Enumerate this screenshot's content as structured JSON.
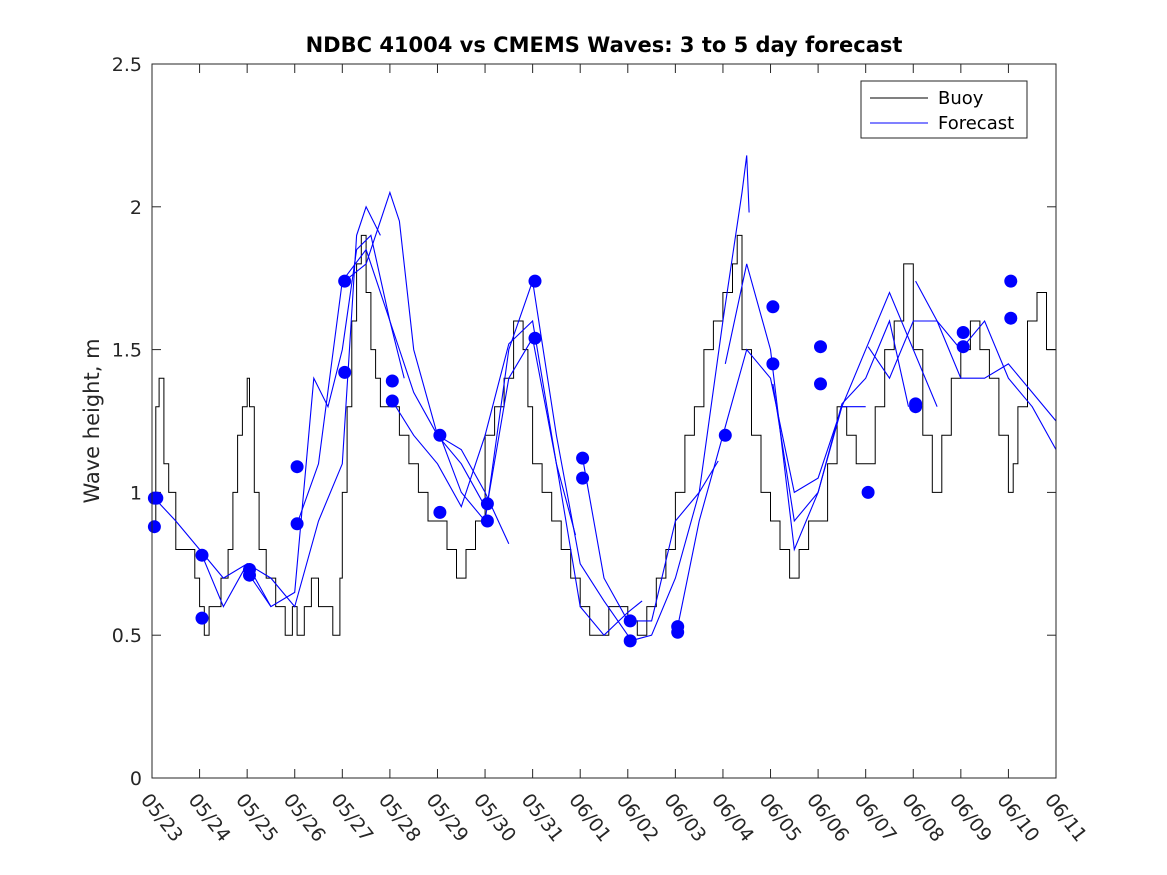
{
  "chart_data": {
    "type": "line",
    "title": "NDBC 41004 vs CMEMS Waves: 3 to 5 day forecast",
    "xlabel": "",
    "ylabel": "Wave height, m",
    "x_tick_labels": [
      "05/23",
      "05/24",
      "05/25",
      "05/26",
      "05/27",
      "05/28",
      "05/29",
      "05/30",
      "05/31",
      "06/01",
      "06/02",
      "06/03",
      "06/04",
      "06/05",
      "06/06",
      "06/07",
      "06/08",
      "06/09",
      "06/10",
      "06/11"
    ],
    "xlim_days": [
      0,
      19
    ],
    "y_tick_labels": [
      "0",
      "0.5",
      "1",
      "1.5",
      "2",
      "2.5"
    ],
    "ylim": [
      0,
      2.5
    ],
    "grid": false,
    "legend_position": "top-right",
    "colors": {
      "buoy": "#000000",
      "forecast": "#0000ff",
      "markers": "#0000ff"
    },
    "legend": [
      {
        "label": "Buoy",
        "color": "#000000"
      },
      {
        "label": "Forecast",
        "color": "#0000ff"
      }
    ],
    "buoy": {
      "name": "Buoy",
      "points": [
        [
          0.0,
          0.9
        ],
        [
          0.08,
          1.3
        ],
        [
          0.15,
          1.4
        ],
        [
          0.25,
          1.1
        ],
        [
          0.35,
          1.0
        ],
        [
          0.5,
          0.8
        ],
        [
          0.7,
          0.8
        ],
        [
          0.9,
          0.7
        ],
        [
          1.0,
          0.6
        ],
        [
          1.1,
          0.5
        ],
        [
          1.2,
          0.6
        ],
        [
          1.3,
          0.6
        ],
        [
          1.45,
          0.7
        ],
        [
          1.6,
          0.8
        ],
        [
          1.7,
          1.0
        ],
        [
          1.8,
          1.2
        ],
        [
          1.9,
          1.3
        ],
        [
          2.0,
          1.4
        ],
        [
          2.05,
          1.3
        ],
        [
          2.15,
          1.0
        ],
        [
          2.25,
          0.8
        ],
        [
          2.4,
          0.7
        ],
        [
          2.5,
          0.7
        ],
        [
          2.6,
          0.6
        ],
        [
          2.8,
          0.5
        ],
        [
          2.95,
          0.6
        ],
        [
          3.05,
          0.5
        ],
        [
          3.2,
          0.6
        ],
        [
          3.35,
          0.7
        ],
        [
          3.5,
          0.6
        ],
        [
          3.6,
          0.6
        ],
        [
          3.8,
          0.5
        ],
        [
          3.95,
          0.7
        ],
        [
          4.0,
          1.0
        ],
        [
          4.1,
          1.3
        ],
        [
          4.2,
          1.6
        ],
        [
          4.3,
          1.8
        ],
        [
          4.4,
          1.9
        ],
        [
          4.5,
          1.7
        ],
        [
          4.6,
          1.5
        ],
        [
          4.7,
          1.4
        ],
        [
          4.8,
          1.3
        ],
        [
          5.0,
          1.3
        ],
        [
          5.2,
          1.2
        ],
        [
          5.4,
          1.1
        ],
        [
          5.6,
          1.0
        ],
        [
          5.8,
          0.9
        ],
        [
          6.0,
          0.9
        ],
        [
          6.2,
          0.8
        ],
        [
          6.4,
          0.7
        ],
        [
          6.6,
          0.8
        ],
        [
          6.8,
          0.9
        ],
        [
          7.0,
          1.2
        ],
        [
          7.2,
          1.3
        ],
        [
          7.4,
          1.4
        ],
        [
          7.6,
          1.6
        ],
        [
          7.8,
          1.5
        ],
        [
          7.9,
          1.3
        ],
        [
          8.0,
          1.1
        ],
        [
          8.2,
          1.0
        ],
        [
          8.4,
          0.9
        ],
        [
          8.6,
          0.8
        ],
        [
          8.8,
          0.7
        ],
        [
          9.0,
          0.6
        ],
        [
          9.2,
          0.5
        ],
        [
          9.4,
          0.5
        ],
        [
          9.6,
          0.6
        ],
        [
          9.8,
          0.6
        ],
        [
          10.0,
          0.55
        ],
        [
          10.2,
          0.5
        ],
        [
          10.4,
          0.6
        ],
        [
          10.6,
          0.7
        ],
        [
          10.8,
          0.8
        ],
        [
          11.0,
          1.0
        ],
        [
          11.2,
          1.2
        ],
        [
          11.4,
          1.3
        ],
        [
          11.6,
          1.5
        ],
        [
          11.8,
          1.6
        ],
        [
          12.0,
          1.7
        ],
        [
          12.2,
          1.8
        ],
        [
          12.3,
          1.9
        ],
        [
          12.4,
          1.5
        ],
        [
          12.6,
          1.2
        ],
        [
          12.8,
          1.0
        ],
        [
          13.0,
          0.9
        ],
        [
          13.2,
          0.8
        ],
        [
          13.4,
          0.7
        ],
        [
          13.6,
          0.8
        ],
        [
          13.8,
          0.9
        ],
        [
          14.0,
          0.9
        ],
        [
          14.2,
          1.1
        ],
        [
          14.4,
          1.3
        ],
        [
          14.6,
          1.2
        ],
        [
          14.8,
          1.1
        ],
        [
          15.0,
          1.1
        ],
        [
          15.2,
          1.3
        ],
        [
          15.4,
          1.5
        ],
        [
          15.6,
          1.6
        ],
        [
          15.8,
          1.8
        ],
        [
          16.0,
          1.5
        ],
        [
          16.2,
          1.2
        ],
        [
          16.4,
          1.0
        ],
        [
          16.6,
          1.2
        ],
        [
          16.8,
          1.4
        ],
        [
          17.0,
          1.5
        ],
        [
          17.2,
          1.6
        ],
        [
          17.4,
          1.5
        ],
        [
          17.6,
          1.4
        ],
        [
          17.8,
          1.2
        ],
        [
          18.0,
          1.0
        ],
        [
          18.1,
          1.1
        ],
        [
          18.2,
          1.3
        ],
        [
          18.4,
          1.6
        ],
        [
          18.6,
          1.7
        ],
        [
          18.8,
          1.5
        ],
        [
          19.0,
          1.3
        ]
      ]
    },
    "forecast_runs": [
      {
        "name": "Forecast",
        "points": [
          [
            0.05,
            0.98
          ],
          [
            0.5,
            0.9
          ],
          [
            1.0,
            0.8
          ],
          [
            1.5,
            0.7
          ],
          [
            2.0,
            0.75
          ],
          [
            2.5,
            0.6
          ]
        ]
      },
      {
        "name": "Forecast",
        "points": [
          [
            1.05,
            0.78
          ],
          [
            1.5,
            0.6
          ],
          [
            2.0,
            0.75
          ],
          [
            2.5,
            0.7
          ],
          [
            3.0,
            0.6
          ],
          [
            3.5,
            0.9
          ],
          [
            4.0,
            1.1
          ],
          [
            4.3,
            1.9
          ],
          [
            4.5,
            2.0
          ],
          [
            4.8,
            1.9
          ]
        ]
      },
      {
        "name": "Forecast",
        "points": [
          [
            2.05,
            0.71
          ],
          [
            2.5,
            0.6
          ],
          [
            3.0,
            0.65
          ],
          [
            3.4,
            1.4
          ],
          [
            3.7,
            1.3
          ],
          [
            4.0,
            1.5
          ],
          [
            4.3,
            1.85
          ],
          [
            4.6,
            1.9
          ],
          [
            5.0,
            1.6
          ],
          [
            5.3,
            1.4
          ]
        ]
      },
      {
        "name": "Forecast",
        "points": [
          [
            3.05,
            0.89
          ],
          [
            3.5,
            1.1
          ],
          [
            4.0,
            1.74
          ],
          [
            4.5,
            1.85
          ],
          [
            5.0,
            1.6
          ],
          [
            5.5,
            1.35
          ],
          [
            6.0,
            1.2
          ],
          [
            6.5,
            1.1
          ],
          [
            7.0,
            0.95
          ]
        ]
      },
      {
        "name": "Forecast",
        "points": [
          [
            4.05,
            1.74
          ],
          [
            4.5,
            1.8
          ],
          [
            5.0,
            2.05
          ],
          [
            5.2,
            1.95
          ],
          [
            5.5,
            1.5
          ],
          [
            6.0,
            1.2
          ],
          [
            6.5,
            1.15
          ],
          [
            7.0,
            1.0
          ],
          [
            7.5,
            0.82
          ]
        ]
      },
      {
        "name": "Forecast",
        "points": [
          [
            5.05,
            1.32
          ],
          [
            5.5,
            1.2
          ],
          [
            6.0,
            1.1
          ],
          [
            6.5,
            0.95
          ],
          [
            7.0,
            1.2
          ],
          [
            7.5,
            1.52
          ],
          [
            8.0,
            1.6
          ],
          [
            8.5,
            1.1
          ],
          [
            8.9,
            0.85
          ]
        ]
      },
      {
        "name": "Forecast",
        "points": [
          [
            6.05,
            1.2
          ],
          [
            6.5,
            1.0
          ],
          [
            7.0,
            0.9
          ],
          [
            7.5,
            1.5
          ],
          [
            8.0,
            1.74
          ],
          [
            8.5,
            1.2
          ],
          [
            9.0,
            0.75
          ],
          [
            9.5,
            0.62
          ],
          [
            10.0,
            0.5
          ]
        ]
      },
      {
        "name": "Forecast",
        "points": [
          [
            7.05,
            0.96
          ],
          [
            7.5,
            1.4
          ],
          [
            8.0,
            1.54
          ],
          [
            8.5,
            1.1
          ],
          [
            9.0,
            0.6
          ],
          [
            9.5,
            0.5
          ],
          [
            10.0,
            0.58
          ],
          [
            10.3,
            0.62
          ]
        ]
      },
      {
        "name": "Forecast",
        "points": [
          [
            9.05,
            1.12
          ],
          [
            9.5,
            0.7
          ],
          [
            10.0,
            0.55
          ],
          [
            10.5,
            0.55
          ],
          [
            11.0,
            0.9
          ],
          [
            11.5,
            1.0
          ],
          [
            11.9,
            1.11
          ]
        ]
      },
      {
        "name": "Forecast",
        "points": [
          [
            10.05,
            0.48
          ],
          [
            10.5,
            0.5
          ],
          [
            11.0,
            0.7
          ],
          [
            11.5,
            1.0
          ],
          [
            12.0,
            1.6
          ],
          [
            12.4,
            2.05
          ],
          [
            12.5,
            2.18
          ],
          [
            12.55,
            1.98
          ]
        ]
      },
      {
        "name": "Forecast",
        "points": [
          [
            11.05,
            0.53
          ],
          [
            11.5,
            0.9
          ],
          [
            12.0,
            1.2
          ],
          [
            12.5,
            1.5
          ],
          [
            13.0,
            1.4
          ],
          [
            13.5,
            1.0
          ],
          [
            14.0,
            1.05
          ],
          [
            14.5,
            1.3
          ],
          [
            15.0,
            1.3
          ]
        ]
      },
      {
        "name": "Forecast",
        "points": [
          [
            12.05,
            1.45
          ],
          [
            12.5,
            1.8
          ],
          [
            13.0,
            1.5
          ],
          [
            13.5,
            0.8
          ],
          [
            14.0,
            1.0
          ],
          [
            14.5,
            1.31
          ],
          [
            15.0,
            1.4
          ],
          [
            15.5,
            1.6
          ],
          [
            15.9,
            1.3
          ]
        ]
      },
      {
        "name": "Forecast",
        "points": [
          [
            13.05,
            1.38
          ],
          [
            13.5,
            0.9
          ],
          [
            14.0,
            1.0
          ],
          [
            14.5,
            1.3
          ],
          [
            15.0,
            1.5
          ],
          [
            15.5,
            1.7
          ],
          [
            16.0,
            1.5
          ],
          [
            16.5,
            1.3
          ]
        ]
      },
      {
        "name": "Forecast",
        "points": [
          [
            15.05,
            1.51
          ],
          [
            15.5,
            1.4
          ],
          [
            16.0,
            1.6
          ],
          [
            16.5,
            1.6
          ],
          [
            17.0,
            1.5
          ],
          [
            17.5,
            1.6
          ],
          [
            18.0,
            1.4
          ],
          [
            18.5,
            1.3
          ],
          [
            19.0,
            1.15
          ]
        ]
      },
      {
        "name": "Forecast",
        "points": [
          [
            16.05,
            1.74
          ],
          [
            16.5,
            1.6
          ],
          [
            17.0,
            1.4
          ],
          [
            17.5,
            1.4
          ],
          [
            18.0,
            1.45
          ],
          [
            18.5,
            1.35
          ],
          [
            19.0,
            1.25
          ]
        ]
      }
    ],
    "markers": [
      [
        0.05,
        0.98
      ],
      [
        0.05,
        0.88
      ],
      [
        0.1,
        0.98
      ],
      [
        1.05,
        0.78
      ],
      [
        1.05,
        0.56
      ],
      [
        2.05,
        0.73
      ],
      [
        2.05,
        0.71
      ],
      [
        3.05,
        1.09
      ],
      [
        3.05,
        0.89
      ],
      [
        4.05,
        1.74
      ],
      [
        4.05,
        1.42
      ],
      [
        5.05,
        1.39
      ],
      [
        5.05,
        1.32
      ],
      [
        6.05,
        1.2
      ],
      [
        6.05,
        0.93
      ],
      [
        7.05,
        0.96
      ],
      [
        7.05,
        0.9
      ],
      [
        8.05,
        1.74
      ],
      [
        8.05,
        1.54
      ],
      [
        9.05,
        1.12
      ],
      [
        9.05,
        1.05
      ],
      [
        10.05,
        0.55
      ],
      [
        10.05,
        0.48
      ],
      [
        11.05,
        0.53
      ],
      [
        11.05,
        0.51
      ],
      [
        12.05,
        1.2
      ],
      [
        13.05,
        1.65
      ],
      [
        13.05,
        1.45
      ],
      [
        14.05,
        1.51
      ],
      [
        14.05,
        1.38
      ],
      [
        15.05,
        1.0
      ],
      [
        16.05,
        1.31
      ],
      [
        16.05,
        1.3
      ],
      [
        17.05,
        1.56
      ],
      [
        17.05,
        1.51
      ],
      [
        18.05,
        1.74
      ],
      [
        18.05,
        1.61
      ]
    ]
  }
}
